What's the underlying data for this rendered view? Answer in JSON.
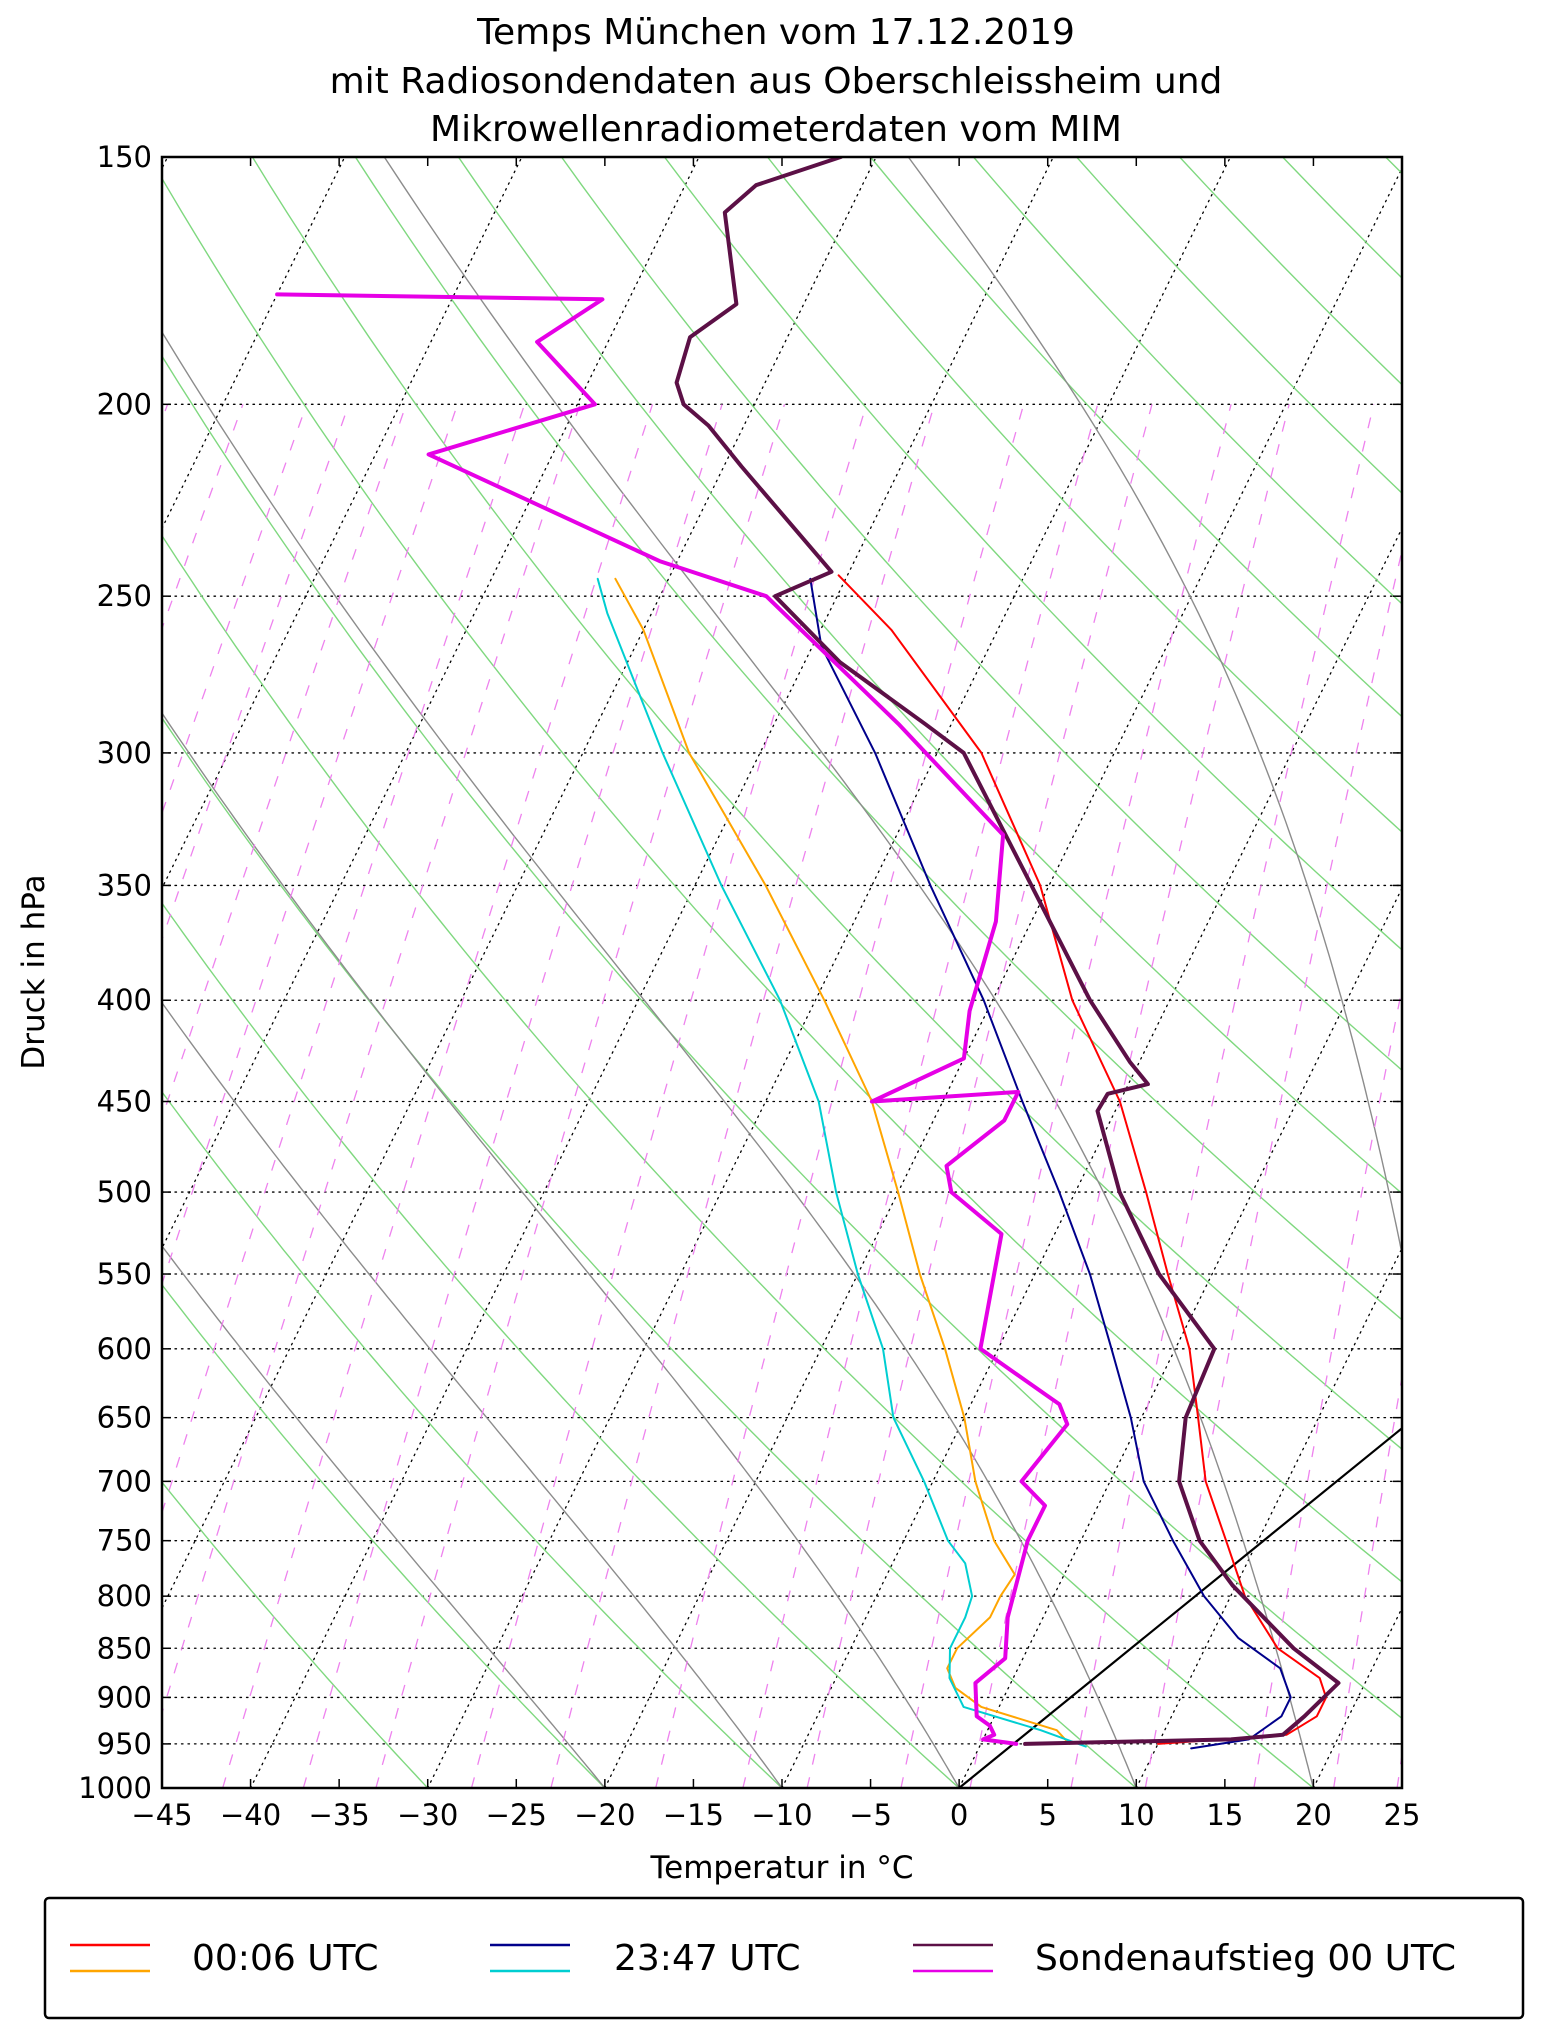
{
  "chart_data": {
    "type": "line",
    "diagram": "Skew-T log-P",
    "title": [
      "Temps München vom 17.12.2019",
      "mit Radiosondendaten aus Oberschleissheim und",
      "Mikrowellenradiometerdaten vom MIM"
    ],
    "xlabel": "Temperatur in °C",
    "ylabel": "Druck in hPa",
    "xlim": [
      -45,
      25
    ],
    "ylim": [
      1000,
      150
    ],
    "skew_deg_per_decade": 55,
    "xticks": [
      -45,
      -40,
      -35,
      -30,
      -25,
      -20,
      -15,
      -10,
      -5,
      0,
      5,
      10,
      15,
      20,
      25
    ],
    "xtick_labels": [
      "−45",
      "−40",
      "−35",
      "−30",
      "−25",
      "−20",
      "−15",
      "−10",
      "−5",
      "0",
      "5",
      "10",
      "15",
      "20",
      "25"
    ],
    "yticks": [
      1000,
      950,
      900,
      850,
      800,
      750,
      700,
      650,
      600,
      550,
      500,
      450,
      400,
      350,
      300,
      250,
      200,
      150
    ],
    "ytick_labels": [
      "1000",
      "950",
      "900",
      "850",
      "800",
      "750",
      "700",
      "650",
      "600",
      "550",
      "500",
      "450",
      "400",
      "350",
      "300",
      "250",
      "200",
      "150"
    ],
    "grid": true,
    "background_lines": {
      "skewed_isotherms": {
        "color": "#000000",
        "style": "dotted",
        "start_C": -160,
        "end_C": 70,
        "step_C": 10
      },
      "dry_adiabats": {
        "color": "#7fd87f",
        "temps_C": [
          -30,
          -20,
          -10,
          0,
          10,
          20,
          30,
          40,
          50,
          60,
          70,
          80,
          90,
          100,
          110,
          120,
          130,
          140,
          150,
          160,
          170,
          180
        ]
      },
      "moist_adiabats": {
        "color": "#8c8c8c",
        "temps_C": [
          -20,
          -10,
          0,
          10,
          20,
          30
        ]
      },
      "mixing_ratio_lines": {
        "color": "#ee82ee",
        "style": "dashed",
        "p_top": 200,
        "values_gkg": [
          0.001,
          0.002,
          0.004,
          0.007,
          0.01,
          0.016,
          0.024,
          0.04,
          0.06,
          0.1,
          0.16,
          0.24,
          0.4,
          0.6,
          1,
          1.5,
          2,
          3,
          4,
          6,
          8,
          12,
          16,
          20
        ]
      },
      "black_line": {
        "color": "#000000",
        "points": [
          {
            "t": 0,
            "p": 1000
          },
          {
            "t": 42,
            "p": 310
          }
        ]
      }
    },
    "series": [
      {
        "name": "00:06 UTC",
        "variable": "temperature",
        "color": "#ff0000",
        "width": 2,
        "points": [
          {
            "t": 10,
            "p": 950
          },
          {
            "t": 17,
            "p": 940
          },
          {
            "t": 18.2,
            "p": 920
          },
          {
            "t": 18.2,
            "p": 900
          },
          {
            "t": 17.3,
            "p": 880
          },
          {
            "t": 14.1,
            "p": 850
          },
          {
            "t": 10.8,
            "p": 800
          },
          {
            "t": 8.2,
            "p": 750
          },
          {
            "t": 5.4,
            "p": 700
          },
          {
            "t": 3.2,
            "p": 650
          },
          {
            "t": 0.8,
            "p": 600
          },
          {
            "t": -2.5,
            "p": 550
          },
          {
            "t": -6,
            "p": 500
          },
          {
            "t": -10,
            "p": 450
          },
          {
            "t": -15.5,
            "p": 400
          },
          {
            "t": -20.5,
            "p": 350
          },
          {
            "t": -27.5,
            "p": 300
          },
          {
            "t": -36,
            "p": 260
          },
          {
            "t": -40.5,
            "p": 244
          }
        ]
      },
      {
        "name": "00:06 UTC",
        "variable": "dewpoint",
        "color": "#ffa500",
        "width": 2,
        "points": [
          {
            "t": 5,
            "p": 950
          },
          {
            "t": 3.9,
            "p": 935
          },
          {
            "t": -1,
            "p": 910
          },
          {
            "t": -3,
            "p": 890
          },
          {
            "t": -4,
            "p": 870
          },
          {
            "t": -4,
            "p": 850
          },
          {
            "t": -3,
            "p": 820
          },
          {
            "t": -3,
            "p": 800
          },
          {
            "t": -2.8,
            "p": 780
          },
          {
            "t": -4.9,
            "p": 750
          },
          {
            "t": -7.6,
            "p": 700
          },
          {
            "t": -10,
            "p": 650
          },
          {
            "t": -13,
            "p": 600
          },
          {
            "t": -16.5,
            "p": 550
          },
          {
            "t": -20,
            "p": 500
          },
          {
            "t": -24,
            "p": 450
          },
          {
            "t": -29.5,
            "p": 400
          },
          {
            "t": -36,
            "p": 350
          },
          {
            "t": -44,
            "p": 300
          },
          {
            "t": -50,
            "p": 260
          },
          {
            "t": -53,
            "p": 245
          }
        ]
      },
      {
        "name": "23:47 UTC",
        "variable": "temperature",
        "color": "#00008b",
        "width": 2,
        "points": [
          {
            "t": 12,
            "p": 955
          },
          {
            "t": 15,
            "p": 945
          },
          {
            "t": 16.2,
            "p": 920
          },
          {
            "t": 16.2,
            "p": 900
          },
          {
            "t": 14.8,
            "p": 870
          },
          {
            "t": 11.6,
            "p": 840
          },
          {
            "t": 8.5,
            "p": 800
          },
          {
            "t": 5.2,
            "p": 750
          },
          {
            "t": 1.9,
            "p": 700
          },
          {
            "t": -0.6,
            "p": 650
          },
          {
            "t": -3.6,
            "p": 600
          },
          {
            "t": -6.9,
            "p": 550
          },
          {
            "t": -10.9,
            "p": 500
          },
          {
            "t": -15.5,
            "p": 450
          },
          {
            "t": -20.5,
            "p": 400
          },
          {
            "t": -26.7,
            "p": 350
          },
          {
            "t": -33.5,
            "p": 300
          },
          {
            "t": -39.5,
            "p": 265
          },
          {
            "t": -42,
            "p": 245
          }
        ]
      },
      {
        "name": "23:47 UTC",
        "variable": "dewpoint",
        "color": "#00ced1",
        "width": 2,
        "points": [
          {
            "t": 6,
            "p": 953
          },
          {
            "t": 3,
            "p": 935
          },
          {
            "t": -2,
            "p": 910
          },
          {
            "t": -3.6,
            "p": 880
          },
          {
            "t": -4.4,
            "p": 850
          },
          {
            "t": -4.4,
            "p": 820
          },
          {
            "t": -4.6,
            "p": 800
          },
          {
            "t": -5.9,
            "p": 770
          },
          {
            "t": -7.5,
            "p": 750
          },
          {
            "t": -10.5,
            "p": 700
          },
          {
            "t": -14,
            "p": 650
          },
          {
            "t": -16.5,
            "p": 600
          },
          {
            "t": -20,
            "p": 550
          },
          {
            "t": -23.5,
            "p": 500
          },
          {
            "t": -27,
            "p": 450
          },
          {
            "t": -32,
            "p": 400
          },
          {
            "t": -38.5,
            "p": 350
          },
          {
            "t": -45.5,
            "p": 300
          },
          {
            "t": -52.5,
            "p": 255
          },
          {
            "t": -54,
            "p": 245
          }
        ]
      },
      {
        "name": "Sondenaufstieg 00 UTC",
        "variable": "temperature",
        "color": "#5c1046",
        "width": 4,
        "points": [
          {
            "t": 2.5,
            "p": 950
          },
          {
            "t": 14,
            "p": 945
          },
          {
            "t": 16.8,
            "p": 940
          },
          {
            "t": 17.5,
            "p": 920
          },
          {
            "t": 18.5,
            "p": 885
          },
          {
            "t": 15,
            "p": 850
          },
          {
            "t": 9.8,
            "p": 790
          },
          {
            "t": 6.7,
            "p": 750
          },
          {
            "t": 3.9,
            "p": 700
          },
          {
            "t": 2.5,
            "p": 650
          },
          {
            "t": 2.2,
            "p": 600
          },
          {
            "t": -3,
            "p": 550
          },
          {
            "t": -7.5,
            "p": 500
          },
          {
            "t": -11,
            "p": 455
          },
          {
            "t": -10.9,
            "p": 446
          },
          {
            "t": -8.9,
            "p": 441
          },
          {
            "t": -10.5,
            "p": 430
          },
          {
            "t": -14.5,
            "p": 400
          },
          {
            "t": -21,
            "p": 350
          },
          {
            "t": -28.5,
            "p": 300
          },
          {
            "t": -31.5,
            "p": 290
          },
          {
            "t": -38,
            "p": 270
          },
          {
            "t": -43.5,
            "p": 250
          },
          {
            "t": -41,
            "p": 243
          },
          {
            "t": -49,
            "p": 215
          },
          {
            "t": -52,
            "p": 205
          },
          {
            "t": -54,
            "p": 200
          },
          {
            "t": -55,
            "p": 195
          },
          {
            "t": -55.5,
            "p": 185
          },
          {
            "t": -53.8,
            "p": 178
          },
          {
            "t": -57,
            "p": 160
          },
          {
            "t": -56,
            "p": 155
          },
          {
            "t": -52,
            "p": 150
          }
        ]
      },
      {
        "name": "Sondenaufstieg 00 UTC",
        "variable": "dewpoint",
        "color": "#e600e6",
        "width": 4,
        "points": [
          {
            "t": 2,
            "p": 950
          },
          {
            "t": 0,
            "p": 945
          },
          {
            "t": 0.5,
            "p": 940
          },
          {
            "t": 0,
            "p": 930
          },
          {
            "t": -1,
            "p": 920
          },
          {
            "t": -2,
            "p": 885
          },
          {
            "t": -1,
            "p": 860
          },
          {
            "t": -2,
            "p": 820
          },
          {
            "t": -3,
            "p": 750
          },
          {
            "t": -3,
            "p": 720
          },
          {
            "t": -5,
            "p": 700
          },
          {
            "t": -4,
            "p": 655
          },
          {
            "t": -5,
            "p": 640
          },
          {
            "t": -11,
            "p": 600
          },
          {
            "t": -13,
            "p": 525
          },
          {
            "t": -17,
            "p": 500
          },
          {
            "t": -18,
            "p": 485
          },
          {
            "t": -16,
            "p": 460
          },
          {
            "t": -16,
            "p": 445
          },
          {
            "t": -24,
            "p": 450
          },
          {
            "t": -20,
            "p": 428
          },
          {
            "t": -21,
            "p": 405
          },
          {
            "t": -22,
            "p": 365
          },
          {
            "t": -24,
            "p": 330
          },
          {
            "t": -33,
            "p": 290
          },
          {
            "t": -44,
            "p": 250
          },
          {
            "t": -51,
            "p": 240
          },
          {
            "t": -67,
            "p": 212
          },
          {
            "t": -59,
            "p": 200
          },
          {
            "t": -64,
            "p": 186
          },
          {
            "t": -61.5,
            "p": 177
          },
          {
            "t": -80,
            "p": 176
          }
        ]
      }
    ],
    "legend": {
      "placement": "bottom",
      "entries": [
        {
          "label": "00:06 UTC",
          "colors": [
            "#ff0000",
            "#ffa500"
          ]
        },
        {
          "label": "23:47 UTC",
          "colors": [
            "#00008b",
            "#00ced1"
          ]
        },
        {
          "label": "Sondenaufstieg 00 UTC",
          "colors": [
            "#5c1046",
            "#e600e6"
          ]
        }
      ]
    }
  }
}
